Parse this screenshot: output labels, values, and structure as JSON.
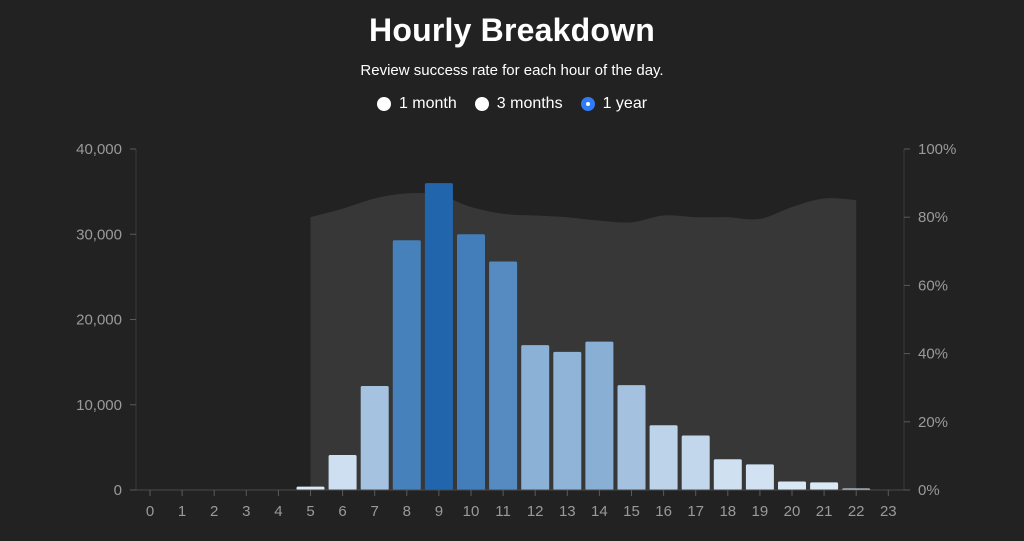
{
  "header": {
    "title": "Hourly Breakdown",
    "subtitle": "Review success rate for each hour of the day."
  },
  "range_options": [
    {
      "label": "1 month",
      "selected": false
    },
    {
      "label": "3 months",
      "selected": false
    },
    {
      "label": "1 year",
      "selected": true
    }
  ],
  "colors": {
    "background": "#222222",
    "area": "#3a3a3a",
    "radio_selected": "#2f7cf6",
    "axis_text": "#9a9a9a"
  },
  "chart_data": {
    "type": "bar",
    "title": "Hourly Breakdown",
    "subtitle": "Review success rate for each hour of the day.",
    "categories": [
      "0",
      "1",
      "2",
      "3",
      "4",
      "5",
      "6",
      "7",
      "8",
      "9",
      "10",
      "11",
      "12",
      "13",
      "14",
      "15",
      "16",
      "17",
      "18",
      "19",
      "20",
      "21",
      "22",
      "23"
    ],
    "series": [
      {
        "axis": "left",
        "type": "bar",
        "values": [
          0,
          0,
          0,
          0,
          0,
          400,
          4100,
          12200,
          29300,
          36000,
          30000,
          26800,
          17000,
          16200,
          17400,
          12300,
          7600,
          6400,
          3600,
          3000,
          1000,
          900,
          100,
          0
        ]
      },
      {
        "axis": "right",
        "type": "area",
        "unit": "%",
        "values": [
          null,
          null,
          null,
          null,
          null,
          80,
          82.5,
          85.5,
          87,
          86.5,
          83,
          81,
          80.5,
          80,
          79,
          78.5,
          80.5,
          80,
          80,
          79.5,
          83,
          85.5,
          85,
          null
        ]
      }
    ],
    "left_axis": {
      "ylim": [
        0,
        40000
      ],
      "ticks": [
        0,
        10000,
        20000,
        30000,
        40000
      ],
      "tick_labels": [
        "0",
        "10,000",
        "20,000",
        "30,000",
        "40,000"
      ]
    },
    "right_axis": {
      "ylim": [
        0,
        100
      ],
      "ticks": [
        0,
        20,
        40,
        60,
        80,
        100
      ],
      "tick_labels": [
        "0%",
        "20%",
        "40%",
        "60%",
        "80%",
        "100%"
      ]
    },
    "grid": false,
    "legend": "none"
  }
}
